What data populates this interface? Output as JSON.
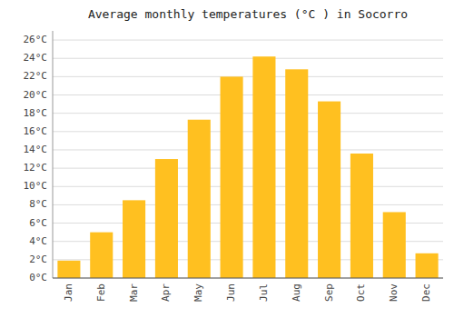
{
  "chart_data": {
    "type": "bar",
    "title": "Average monthly temperatures (°C ) in Socorro",
    "categories": [
      "Jan",
      "Feb",
      "Mar",
      "Apr",
      "May",
      "Jun",
      "Jul",
      "Aug",
      "Sep",
      "Oct",
      "Nov",
      "Dec"
    ],
    "values": [
      1.9,
      5.0,
      8.5,
      13.0,
      17.3,
      22.0,
      24.2,
      22.8,
      19.3,
      13.6,
      7.2,
      2.7
    ],
    "color": "#FFC020",
    "ylim": [
      0,
      27
    ],
    "yticks": [
      {
        "value": 0,
        "label": "0°C"
      },
      {
        "value": 2,
        "label": "2°C"
      },
      {
        "value": 4,
        "label": "4°C"
      },
      {
        "value": 6,
        "label": "6°C"
      },
      {
        "value": 8,
        "label": "8°C"
      },
      {
        "value": 10,
        "label": "10°C"
      },
      {
        "value": 12,
        "label": "12°C"
      },
      {
        "value": 14,
        "label": "14°C"
      },
      {
        "value": 16,
        "label": "16°C"
      },
      {
        "value": 18,
        "label": "18°C"
      },
      {
        "value": 20,
        "label": "20°C"
      },
      {
        "value": 22,
        "label": "22°C"
      },
      {
        "value": 24,
        "label": "24°C"
      },
      {
        "value": 26,
        "label": "26°C"
      }
    ],
    "grid": true
  }
}
